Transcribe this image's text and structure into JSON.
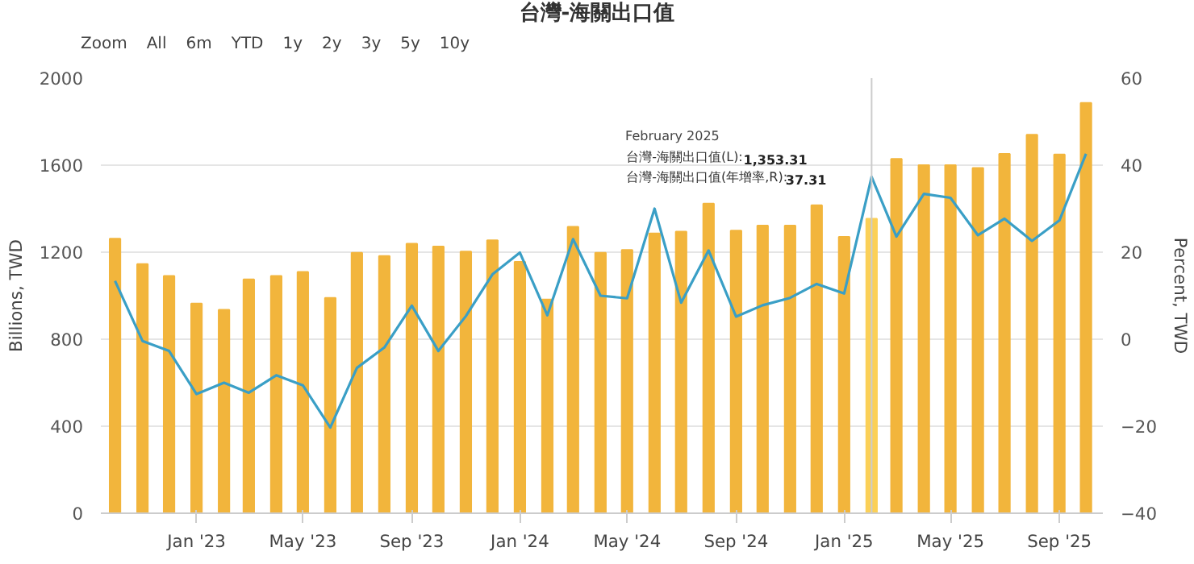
{
  "chart_data": {
    "type": "bar",
    "title": "台灣-海關出口值",
    "annotations": [
      "Zoom",
      "All",
      "6m",
      "YTD",
      "1y",
      "2y",
      "3y",
      "5y",
      "10y",
      "February 2025",
      "台灣-海關出口值(L):",
      "1,353.31",
      "台灣-海關出口值(年增率,R):",
      "37.31"
    ],
    "x": [
      "2022-10",
      "2022-11",
      "2022-12",
      "2023-01",
      "2023-02",
      "2023-03",
      "2023-04",
      "2023-05",
      "2023-06",
      "2023-07",
      "2023-08",
      "2023-09",
      "2023-10",
      "2023-11",
      "2023-12",
      "2024-01",
      "2024-02",
      "2024-03",
      "2024-04",
      "2024-05",
      "2024-06",
      "2024-07",
      "2024-08",
      "2024-09",
      "2024-10",
      "2024-11",
      "2024-12",
      "2025-01",
      "2025-02",
      "2025-03",
      "2025-04",
      "2025-05",
      "2025-06",
      "2025-07",
      "2025-08",
      "2025-09",
      "2025-10"
    ],
    "series": [
      {
        "color": "#f2b53c",
        "colors": [
          "#f2b53c",
          "#f2b53c",
          "#f2b53c",
          "#f2b53c",
          "#f2b53c",
          "#f2b53c",
          "#f2b53c",
          "#f2b53c",
          "#f2b53c",
          "#f2b53c",
          "#f2b53c",
          "#f2b53c",
          "#f2b53c",
          "#f2b53c",
          "#f2b53c",
          "#f2b53c",
          "#f2b53c",
          "#f2b53c",
          "#f2b53c",
          "#f2b53c",
          "#f2b53c",
          "#f2b53c",
          "#f2b53c",
          "#f2b53c",
          "#f2b53c",
          "#f2b53c",
          "#f2b53c",
          "#f2b53c",
          "#fbd057",
          "#f2b53c",
          "#f2b53c",
          "#f2b53c",
          "#f2b53c",
          "#f2b53c",
          "#f2b53c",
          "#f2b53c",
          "#f2b53c"
        ],
        "values": [
          1262,
          1145,
          1091,
          964,
          935,
          1075,
          1091,
          1109,
          990,
          1197,
          1182,
          1239,
          1226,
          1203,
          1255,
          1156,
          982,
          1317,
          1197,
          1210,
          1286,
          1294,
          1423,
          1299,
          1322,
          1322,
          1416,
          1270,
          1353.31,
          1629,
          1600,
          1600,
          1587,
          1652,
          1740,
          1649,
          1886
        ]
      },
      {
        "type": "line",
        "axis": "y2",
        "color": "#3a9fc6",
        "values": [
          13.4,
          -0.4,
          -2.7,
          -12.6,
          -10,
          -12.3,
          -8.3,
          -10.6,
          -20.3,
          -6.6,
          -1.9,
          7.7,
          -2.7,
          5.3,
          14.9,
          19.9,
          5.5,
          23,
          10,
          9.4,
          30,
          8.4,
          20.4,
          5.2,
          7.8,
          9.5,
          12.7,
          10.5,
          37.31,
          23.6,
          33.4,
          32.5,
          23.9,
          27.7,
          22.6,
          27.3,
          42.6
        ]
      }
    ],
    "ylabel": "Billions, TWD",
    "y2label": "Percent, TWD",
    "ylim": [
      0,
      2000
    ],
    "yticks": [
      0,
      400,
      800,
      1200,
      1600,
      2000
    ],
    "y2lim": [
      -40,
      60
    ],
    "y2ticks": [
      -40,
      -20,
      0,
      20,
      40,
      60
    ],
    "xlim": [
      "2022-09-15",
      "2025-10-20"
    ],
    "xticks": [
      {
        "value": "2023-01",
        "label": "Jan '23"
      },
      {
        "value": "2023-05",
        "label": "May '23"
      },
      {
        "value": "2023-09",
        "label": "Sep '23"
      },
      {
        "value": "2024-01",
        "label": "Jan '24"
      },
      {
        "value": "2024-05",
        "label": "May '24"
      },
      {
        "value": "2024-09",
        "label": "Sep '24"
      },
      {
        "value": "2025-01",
        "label": "Jan '25"
      },
      {
        "value": "2025-05",
        "label": "May '25"
      },
      {
        "value": "2025-09",
        "label": "Sep '25"
      }
    ],
    "ref_lines": [
      {
        "axis": "x",
        "value": "2025-02",
        "color": "#cccccc"
      }
    ],
    "grid": "y"
  }
}
